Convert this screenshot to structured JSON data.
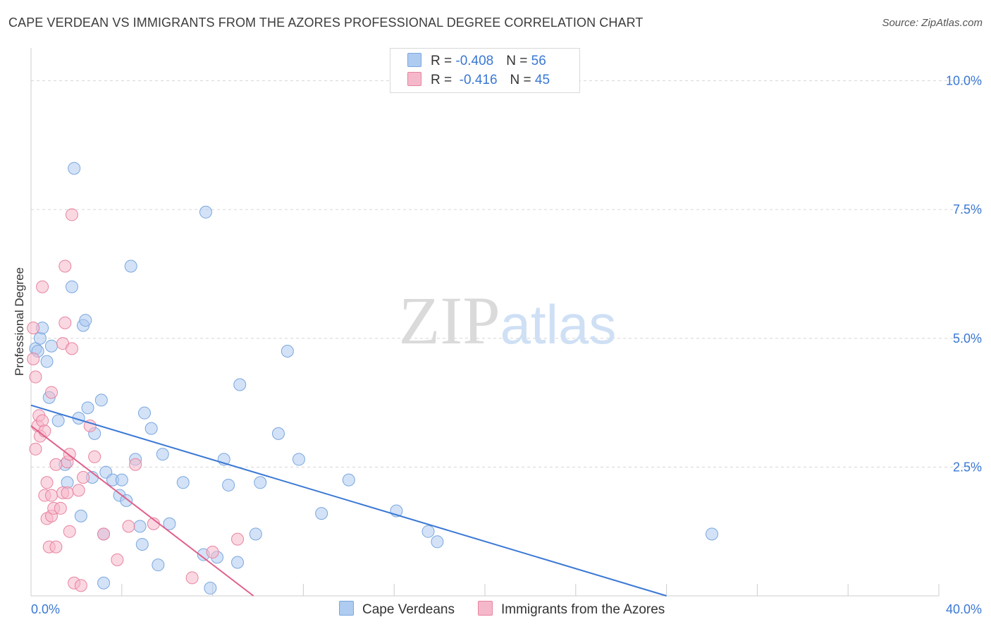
{
  "chart_data": {
    "type": "scatter",
    "title": "CAPE VERDEAN VS IMMIGRANTS FROM THE AZORES PROFESSIONAL DEGREE CORRELATION CHART",
    "source": "Source: ZipAtlas.com",
    "xlabel": "",
    "ylabel": "Professional Degree",
    "xlim": [
      0,
      40
    ],
    "ylim": [
      0,
      10.5
    ],
    "x_tick_labels": [
      {
        "value": 0,
        "label": "0.0%"
      },
      {
        "value": 40,
        "label": "40.0%"
      }
    ],
    "y_tick_labels": [
      {
        "value": 2.5,
        "label": "2.5%"
      },
      {
        "value": 5.0,
        "label": "5.0%"
      },
      {
        "value": 7.5,
        "label": "7.5%"
      },
      {
        "value": 10.0,
        "label": "10.0%"
      }
    ],
    "watermark": {
      "part1": "ZIP",
      "part2": "atlas"
    },
    "legend": {
      "position": "top-center",
      "rows": [
        {
          "r_label": "R = ",
          "r_value": "-0.408",
          "n_label": "N = ",
          "n_value": "56"
        },
        {
          "r_label": "R = ",
          "r_value": " -0.416",
          "n_label": "N = ",
          "n_value": "45"
        }
      ]
    },
    "series": [
      {
        "name": "Cape Verdeans",
        "color": "#aecbf0",
        "edge_color": "#7aa7de",
        "line_color": "#3a78d4",
        "trend": {
          "x0": 0,
          "y0": 3.7,
          "x1": 28.0,
          "y1": 0
        },
        "points": [
          [
            0.2,
            4.8
          ],
          [
            0.3,
            4.75
          ],
          [
            0.4,
            5.0
          ],
          [
            0.5,
            5.2
          ],
          [
            0.7,
            4.55
          ],
          [
            0.8,
            3.85
          ],
          [
            0.9,
            4.85
          ],
          [
            1.2,
            3.4
          ],
          [
            1.5,
            2.55
          ],
          [
            1.6,
            2.2
          ],
          [
            1.8,
            6.0
          ],
          [
            1.9,
            8.3
          ],
          [
            2.1,
            3.45
          ],
          [
            2.2,
            1.55
          ],
          [
            2.3,
            5.25
          ],
          [
            2.4,
            5.35
          ],
          [
            2.5,
            3.65
          ],
          [
            2.7,
            2.3
          ],
          [
            2.8,
            3.15
          ],
          [
            3.1,
            3.8
          ],
          [
            3.2,
            1.2
          ],
          [
            3.3,
            2.4
          ],
          [
            3.2,
            0.25
          ],
          [
            3.6,
            2.25
          ],
          [
            3.9,
            1.95
          ],
          [
            4.0,
            2.25
          ],
          [
            4.2,
            1.85
          ],
          [
            4.4,
            6.4
          ],
          [
            4.6,
            2.65
          ],
          [
            4.8,
            1.35
          ],
          [
            4.9,
            1.0
          ],
          [
            5.0,
            3.55
          ],
          [
            5.3,
            3.25
          ],
          [
            5.6,
            0.6
          ],
          [
            5.8,
            2.75
          ],
          [
            6.1,
            1.4
          ],
          [
            6.7,
            2.2
          ],
          [
            7.6,
            0.8
          ],
          [
            7.7,
            7.45
          ],
          [
            7.9,
            0.15
          ],
          [
            8.2,
            0.75
          ],
          [
            8.5,
            2.65
          ],
          [
            8.7,
            2.15
          ],
          [
            9.1,
            0.65
          ],
          [
            9.2,
            4.1
          ],
          [
            9.9,
            1.2
          ],
          [
            10.1,
            2.2
          ],
          [
            10.9,
            3.15
          ],
          [
            11.3,
            4.75
          ],
          [
            11.8,
            2.65
          ],
          [
            12.8,
            1.6
          ],
          [
            14.0,
            2.25
          ],
          [
            16.1,
            1.65
          ],
          [
            17.5,
            1.25
          ],
          [
            17.9,
            1.05
          ],
          [
            30.0,
            1.2
          ]
        ]
      },
      {
        "name": "Immigrants from the Azores",
        "color": "#f5b8cb",
        "edge_color": "#e8839f",
        "line_color": "#e0608a",
        "trend": {
          "x0": 0,
          "y0": 3.3,
          "x1": 9.8,
          "y1": 0
        },
        "points": [
          [
            0.1,
            5.2
          ],
          [
            0.1,
            4.6
          ],
          [
            0.2,
            4.25
          ],
          [
            0.2,
            2.85
          ],
          [
            0.3,
            3.3
          ],
          [
            0.35,
            3.5
          ],
          [
            0.4,
            3.1
          ],
          [
            0.5,
            6.0
          ],
          [
            0.5,
            3.4
          ],
          [
            0.6,
            3.2
          ],
          [
            0.6,
            1.95
          ],
          [
            0.7,
            1.5
          ],
          [
            0.7,
            2.2
          ],
          [
            0.8,
            0.95
          ],
          [
            0.9,
            1.95
          ],
          [
            0.9,
            3.95
          ],
          [
            0.9,
            1.55
          ],
          [
            1.0,
            1.7
          ],
          [
            1.1,
            2.55
          ],
          [
            1.1,
            0.95
          ],
          [
            1.3,
            1.7
          ],
          [
            1.4,
            4.9
          ],
          [
            1.4,
            2.0
          ],
          [
            1.5,
            6.4
          ],
          [
            1.5,
            5.3
          ],
          [
            1.6,
            2.0
          ],
          [
            1.6,
            2.6
          ],
          [
            1.7,
            1.25
          ],
          [
            1.7,
            2.75
          ],
          [
            1.8,
            7.4
          ],
          [
            1.8,
            4.8
          ],
          [
            1.9,
            0.25
          ],
          [
            2.1,
            2.05
          ],
          [
            2.2,
            0.2
          ],
          [
            2.3,
            2.3
          ],
          [
            2.6,
            3.3
          ],
          [
            2.8,
            2.7
          ],
          [
            3.2,
            1.2
          ],
          [
            3.8,
            0.7
          ],
          [
            4.3,
            1.35
          ],
          [
            4.6,
            2.55
          ],
          [
            5.4,
            1.4
          ],
          [
            7.1,
            0.35
          ],
          [
            8.0,
            0.85
          ],
          [
            9.1,
            1.1
          ]
        ]
      }
    ]
  }
}
